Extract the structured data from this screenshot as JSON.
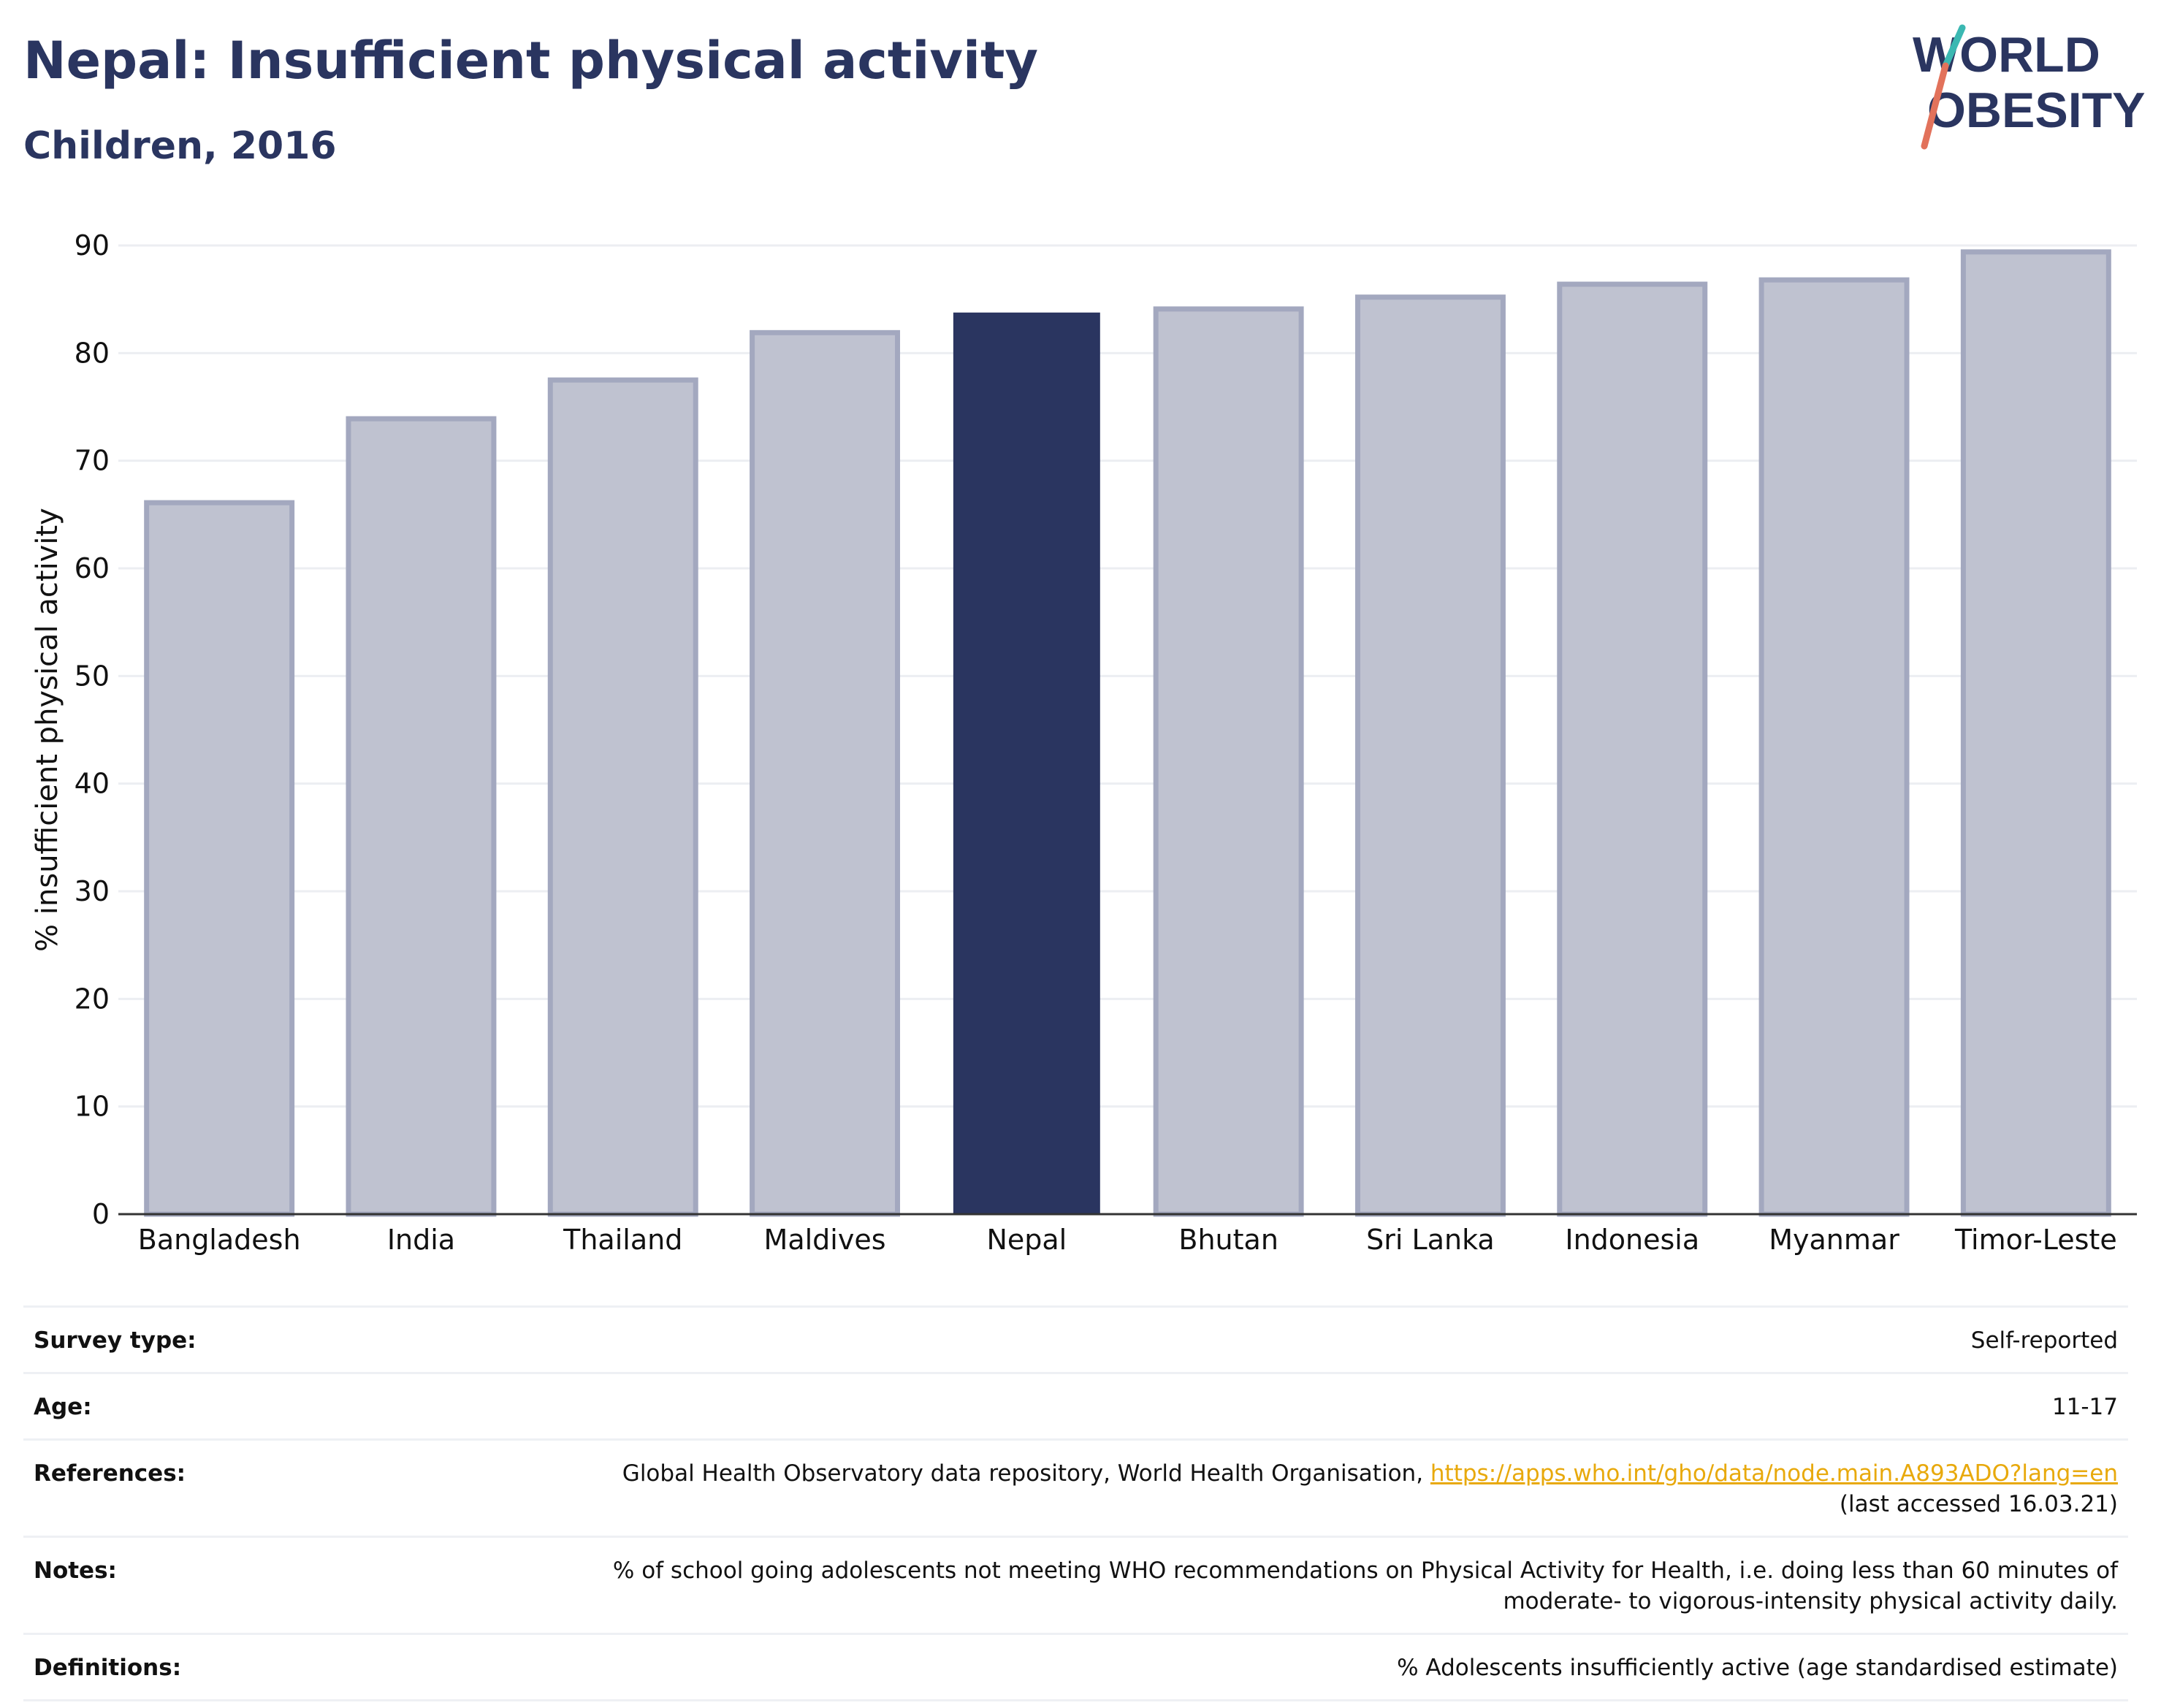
{
  "header": {
    "title": "Nepal: Insufficient physical activity",
    "subtitle": "Children, 2016"
  },
  "logo": {
    "line1": "WORLD",
    "line2": "OBESITY",
    "colors": {
      "text": "#2a3560",
      "slash_top": "#3bb8b2",
      "slash_bottom": "#e2725b"
    }
  },
  "chart_data": {
    "type": "bar",
    "categories": [
      "Bangladesh",
      "India",
      "Thailand",
      "Maldives",
      "Nepal",
      "Bhutan",
      "Sri Lanka",
      "Indonesia",
      "Myanmar",
      "Timor-Leste"
    ],
    "values": [
      66.1,
      73.9,
      77.5,
      81.9,
      83.7,
      84.1,
      85.2,
      86.4,
      86.8,
      89.4
    ],
    "highlight": "Nepal",
    "ylabel": "% insufficient physical activity",
    "ylim": [
      0,
      90
    ],
    "yticks": [
      0,
      10,
      20,
      30,
      40,
      50,
      60,
      70,
      80,
      90
    ],
    "grid": true,
    "colors": {
      "highlight": "#2a3560",
      "other_fill": "#bfc2d0",
      "other_stroke": "#a3a8bf",
      "grid": "#eceef2"
    }
  },
  "info_table": {
    "survey_type": {
      "label": "Survey type:",
      "value": "Self-reported"
    },
    "age": {
      "label": "Age:",
      "value": "11-17"
    },
    "references": {
      "label": "References:",
      "text": "Global Health Observatory data repository, World Health Organisation, ",
      "link": "https://apps.who.int/gho/data/node.main.A893ADO?lang=en",
      "accessed": "(last accessed 16.03.21)"
    },
    "notes": {
      "label": "Notes:",
      "line1": "% of school going adolescents not meeting WHO recommendations on Physical Activity for Health, i.e. doing less than 60 minutes of",
      "line2": "moderate- to vigorous-intensity physical activity daily."
    },
    "definitions": {
      "label": "Definitions:",
      "value": "% Adolescents insufficiently active (age standardised estimate)"
    }
  }
}
